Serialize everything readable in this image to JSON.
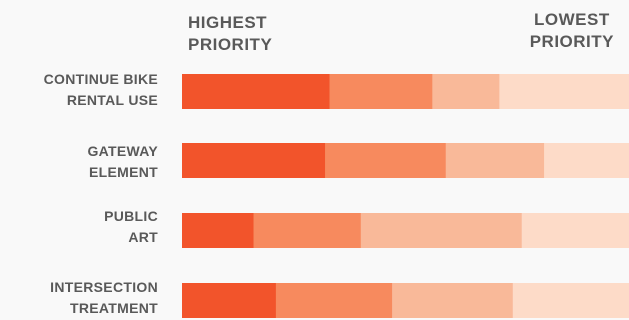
{
  "chart_data": {
    "type": "bar",
    "stacked": true,
    "orientation": "horizontal",
    "scale_labels": {
      "left": "HIGHEST\nPRIORITY",
      "right": "LOWEST\nPRIORITY"
    },
    "categories": [
      "CONTINUE BIKE\nRENTAL USE",
      "GATEWAY\nELEMENT",
      "PUBLIC\nART",
      "INTERSECTION\nTREATMENT"
    ],
    "series": [
      {
        "values": [
          33,
          32,
          16,
          21
        ],
        "color": "#f2542b"
      },
      {
        "values": [
          23,
          27,
          24,
          26
        ],
        "color": "#f78a5e"
      },
      {
        "values": [
          15,
          22,
          36,
          27
        ],
        "color": "#f9b999"
      },
      {
        "values": [
          29,
          19,
          24,
          26
        ],
        "color": "#fddbc8"
      }
    ],
    "xlim": [
      0,
      100
    ],
    "grid": false,
    "legend": "none"
  }
}
